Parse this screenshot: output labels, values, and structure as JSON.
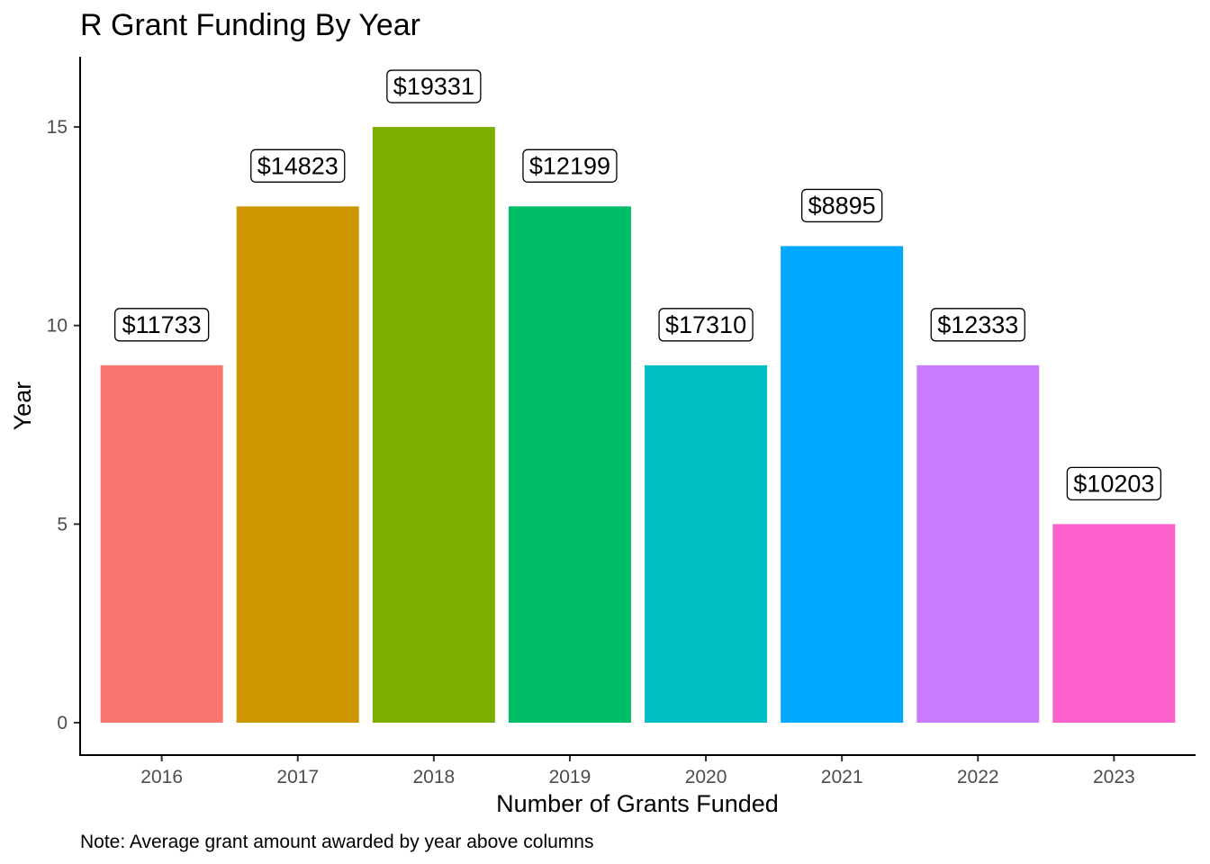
{
  "chart_data": {
    "type": "bar",
    "title": "R Grant Funding By Year",
    "xlabel": "Number of Grants Funded",
    "ylabel": "Year",
    "caption": "Note: Average grant amount awarded by year above columns",
    "categories": [
      "2016",
      "2017",
      "2018",
      "2019",
      "2020",
      "2021",
      "2022",
      "2023"
    ],
    "values": [
      9,
      13,
      15,
      13,
      9,
      12,
      9,
      5
    ],
    "data_labels": [
      "$11733",
      "$14823",
      "$19331",
      "$12199",
      "$17310",
      "$8895",
      "$12333",
      "$10203"
    ],
    "colors": [
      "#F8766D",
      "#CD9600",
      "#7CAE00",
      "#00BE67",
      "#00BFC4",
      "#00A9FF",
      "#C77CFF",
      "#FF61CC"
    ],
    "ylim": [
      0,
      16.6
    ],
    "yticks": [
      0,
      5,
      10,
      15
    ],
    "grid": false,
    "legend": "none"
  }
}
